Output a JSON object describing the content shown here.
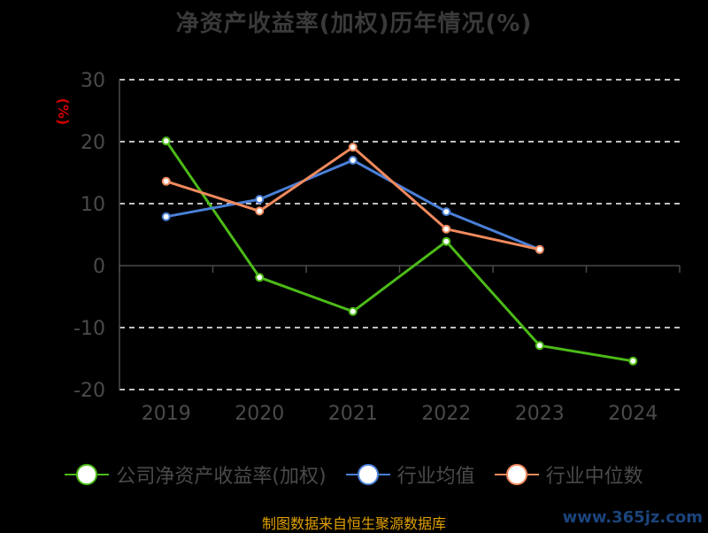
{
  "page": {
    "title": "净资产收益率(加权)历年情况(%)",
    "source": "制图数据来自恒生聚源数据库",
    "watermark": "www.365jz.com"
  },
  "colors": {
    "background": "#000000",
    "grid": "#ffffff",
    "axis": "#4a4a4a",
    "tick_label": "#4a4a4a",
    "unit_label": "#cc0000"
  },
  "chart_data": {
    "type": "line",
    "title": "净资产收益率(加权)历年情况(%)",
    "ylabel": "(%)",
    "xlabel": "",
    "categories": [
      "2019",
      "2020",
      "2021",
      "2022",
      "2023",
      "2024"
    ],
    "yticks": [
      "30",
      "20",
      "10",
      "0",
      "-10",
      "-20"
    ],
    "ylim": [
      -20,
      30
    ],
    "grid": true,
    "legend_position": "bottom",
    "series": [
      {
        "name": "公司净资产收益率(加权)",
        "color": "#4cbb17",
        "values": [
          20.1,
          -1.9,
          -7.4,
          3.9,
          -12.9,
          -15.4
        ]
      },
      {
        "name": "行业均值",
        "color": "#4a7fd6",
        "values": [
          7.9,
          10.7,
          17.0,
          8.7,
          2.6,
          null
        ]
      },
      {
        "name": "行业中位数",
        "color": "#f08a5d",
        "values": [
          13.6,
          8.8,
          19.1,
          5.9,
          2.6,
          null
        ]
      }
    ]
  }
}
